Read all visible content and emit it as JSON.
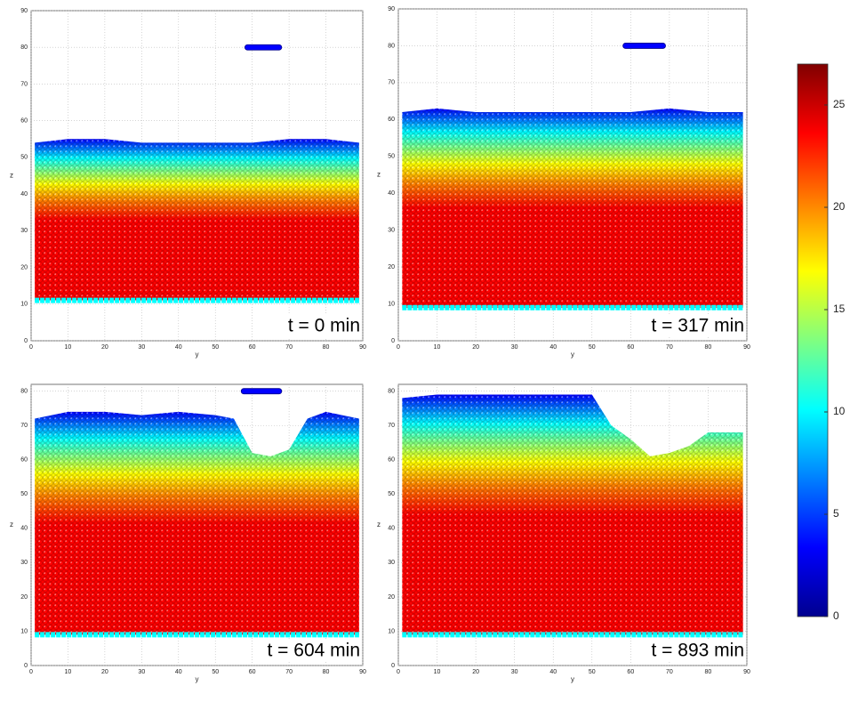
{
  "chart_data": [
    {
      "type": "area",
      "xlabel": "y",
      "ylabel": "z",
      "annotation": "t = 0 min",
      "x": [
        1,
        10,
        20,
        30,
        40,
        50,
        60,
        70,
        80,
        89
      ],
      "values": [
        54,
        55,
        55,
        54,
        54,
        54,
        54,
        55,
        55,
        54
      ],
      "base": 11,
      "cluster": {
        "y": [
          58,
          68
        ],
        "z": 80
      },
      "xlim": [
        0,
        90
      ],
      "ylim": [
        0,
        90
      ],
      "xticks": [
        0,
        10,
        20,
        30,
        40,
        50,
        60,
        70,
        80,
        90
      ],
      "yticks": [
        0,
        10,
        20,
        30,
        40,
        50,
        60,
        70,
        80,
        90
      ],
      "grid": true
    },
    {
      "type": "area",
      "xlabel": "y",
      "ylabel": "z",
      "annotation": "t = 317 min",
      "x": [
        1,
        10,
        20,
        30,
        40,
        50,
        60,
        70,
        80,
        89
      ],
      "values": [
        62,
        63,
        62,
        62,
        62,
        62,
        62,
        63,
        62,
        62
      ],
      "base": 9,
      "cluster": {
        "y": [
          58,
          69
        ],
        "z": 80
      },
      "xlim": [
        0,
        90
      ],
      "ylim": [
        0,
        90
      ],
      "xticks": [
        0,
        10,
        20,
        30,
        40,
        50,
        60,
        70,
        80,
        90
      ],
      "yticks": [
        0,
        10,
        20,
        30,
        40,
        50,
        60,
        70,
        80,
        90
      ],
      "grid": true
    },
    {
      "type": "area",
      "xlabel": "y",
      "ylabel": "z",
      "annotation": "t = 604 min",
      "x": [
        1,
        10,
        20,
        30,
        40,
        50,
        55,
        60,
        65,
        70,
        75,
        80,
        89
      ],
      "values": [
        72,
        74,
        74,
        73,
        74,
        73,
        72,
        62,
        61,
        63,
        72,
        74,
        72
      ],
      "base": 9,
      "cluster": {
        "y": [
          57,
          68
        ],
        "z": 80
      },
      "xlim": [
        0,
        90
      ],
      "ylim": [
        0,
        82
      ],
      "xticks": [
        0,
        10,
        20,
        30,
        40,
        50,
        60,
        70,
        80,
        90
      ],
      "yticks": [
        0,
        10,
        20,
        30,
        40,
        50,
        60,
        70,
        80
      ],
      "grid": true
    },
    {
      "type": "area",
      "xlabel": "y",
      "ylabel": "z",
      "annotation": "t = 893 min",
      "x": [
        1,
        10,
        20,
        30,
        40,
        50,
        55,
        60,
        65,
        70,
        75,
        80,
        89
      ],
      "values": [
        78,
        79,
        79,
        79,
        79,
        79,
        70,
        66,
        61,
        62,
        64,
        68,
        68
      ],
      "base": 9,
      "xlim": [
        0,
        90
      ],
      "ylim": [
        0,
        82
      ],
      "xticks": [
        0,
        10,
        20,
        30,
        40,
        50,
        60,
        70,
        80,
        90
      ],
      "yticks": [
        0,
        10,
        20,
        30,
        40,
        50,
        60,
        70,
        80
      ],
      "grid": true
    },
    {
      "type": "colorbar",
      "clim": [
        0,
        27
      ],
      "ticks": [
        0,
        5,
        10,
        15,
        20,
        25
      ],
      "colors": [
        "#00008f",
        "#0000ff",
        "#0080ff",
        "#00ffff",
        "#80ff80",
        "#ffff00",
        "#ff8000",
        "#ff0000",
        "#800000"
      ]
    }
  ]
}
